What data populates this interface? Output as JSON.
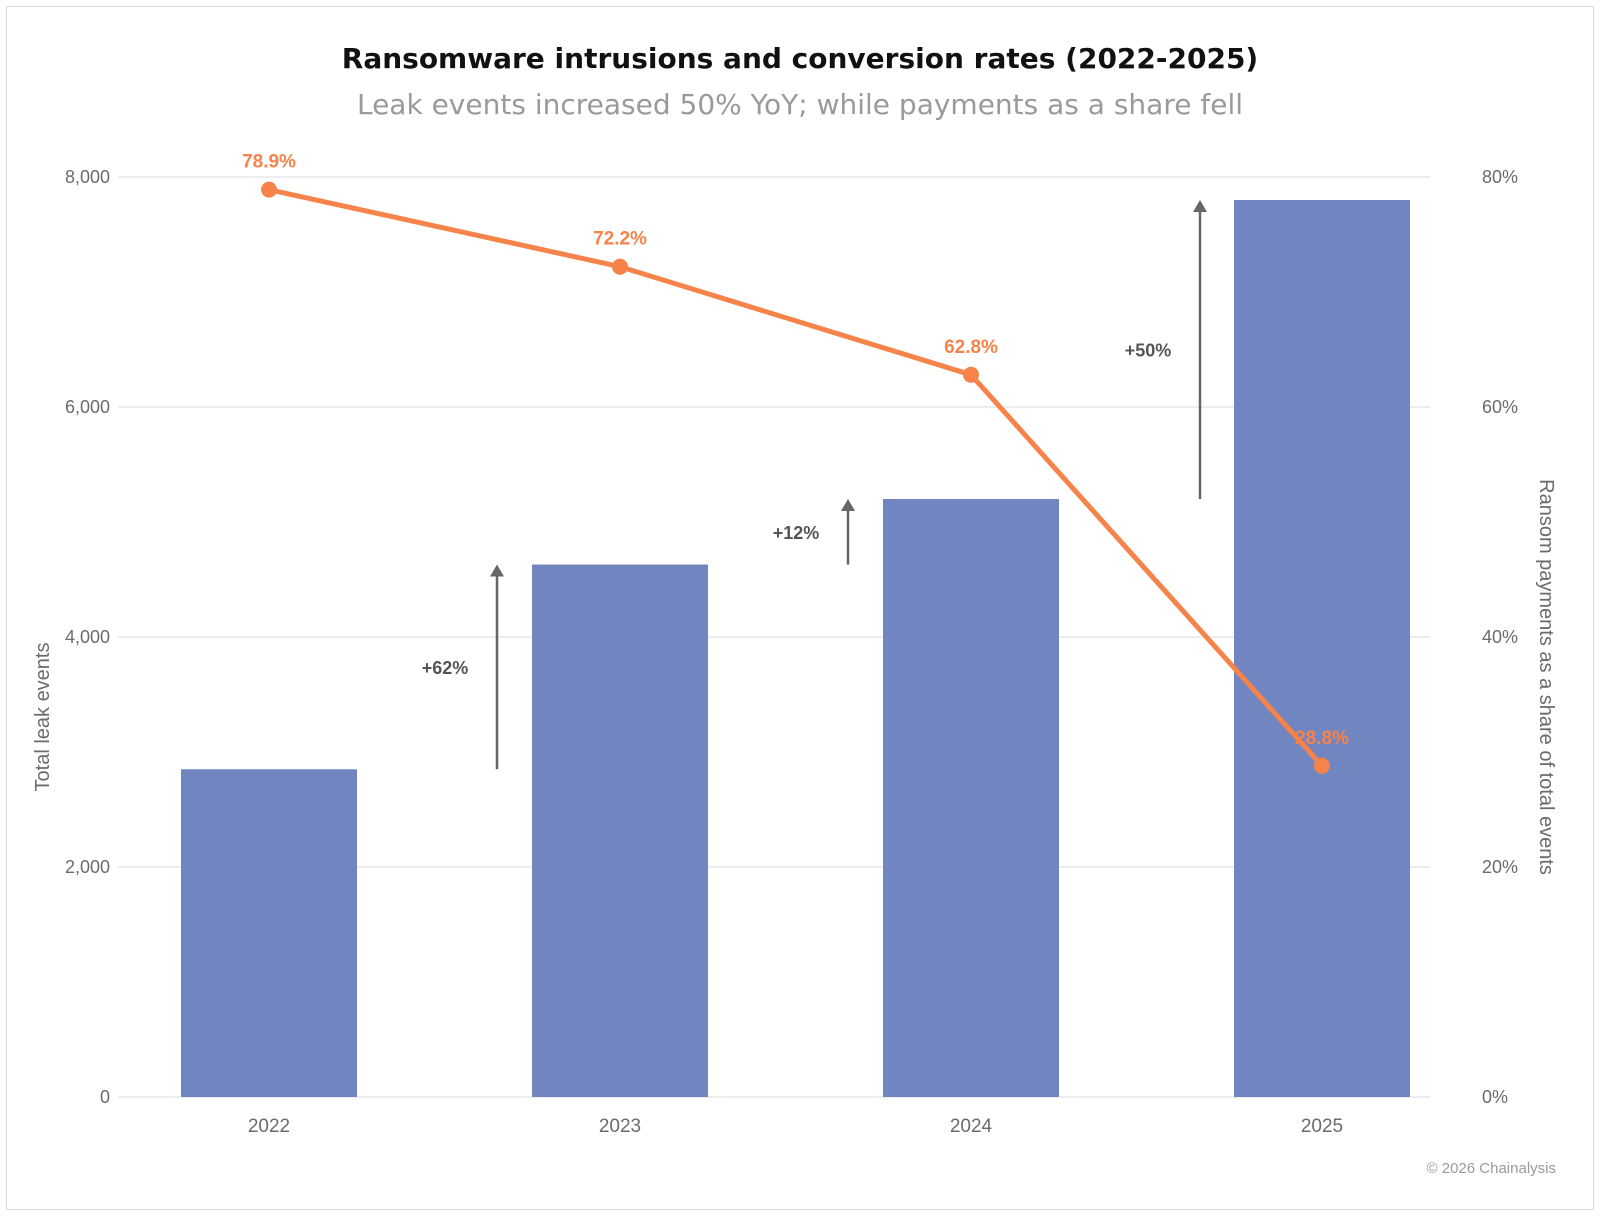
{
  "chart_data": {
    "type": "bar",
    "title": "Ransomware intrusions and conversion rates (2022-2025)",
    "subtitle": "Leak events increased 50% YoY; while payments as a share fell",
    "categories": [
      "2022",
      "2023",
      "2024",
      "2025"
    ],
    "series": [
      {
        "name": "Total leak events",
        "type": "bar",
        "axis": "left",
        "values": [
          2850,
          4630,
          5200,
          7800
        ],
        "color": "#7185c1"
      },
      {
        "name": "Ransom payments as a share of total events",
        "type": "line",
        "axis": "right",
        "values": [
          78.9,
          72.2,
          62.8,
          28.8
        ],
        "labels": [
          "78.9%",
          "72.2%",
          "62.8%",
          "28.8%"
        ],
        "color": "#f5834a"
      }
    ],
    "ylabel": "Total leak events",
    "y2label": "Ransom payments as a share of total events",
    "ylim": [
      0,
      8000
    ],
    "y2lim": [
      0,
      80
    ],
    "yticks": [
      "0",
      "2,000",
      "4,000",
      "6,000",
      "8,000"
    ],
    "y2ticks": [
      "0%",
      "20%",
      "40%",
      "60%",
      "80%"
    ],
    "annotations": [
      {
        "text": "+62%",
        "from": 2850,
        "to": 4630,
        "between": [
          "2022",
          "2023"
        ]
      },
      {
        "text": "+12%",
        "from": 4630,
        "to": 5200,
        "between": [
          "2023",
          "2024"
        ]
      },
      {
        "text": "+50%",
        "from": 5200,
        "to": 7800,
        "between": [
          "2024",
          "2025"
        ]
      }
    ],
    "grid": true,
    "legend": "none"
  },
  "footer": {
    "copyright": "© 2026 Chainalysis"
  },
  "colors": {
    "bar": "#7185c1",
    "line": "#f5834a",
    "arrow": "#666666",
    "grid": "#e2e2e2",
    "axis_text": "#6b6b6b"
  }
}
